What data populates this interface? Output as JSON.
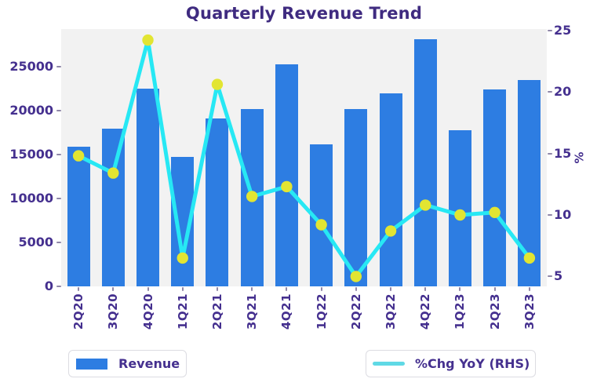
{
  "colors": {
    "bar": "#2D7DE2",
    "line": "#27E8F4",
    "marker": "#E2E532",
    "legend_line": "#5FD9E5",
    "title_text": "#3F2B80",
    "tick_text": "#45308F",
    "plot_bg": "#F2F2F2",
    "tick_dash": "#8F87A8",
    "legend_border": "#DCDCE2"
  },
  "chart_data": {
    "type": "bar+line",
    "title": "Quarterly Revenue Trend",
    "categories": [
      "2Q20",
      "3Q20",
      "4Q20",
      "1Q21",
      "2Q21",
      "3Q21",
      "4Q21",
      "1Q22",
      "2Q22",
      "3Q22",
      "4Q22",
      "1Q23",
      "2Q23",
      "3Q23"
    ],
    "series": [
      {
        "name": "Revenue",
        "type": "bar",
        "axis": "left",
        "values": [
          15900,
          18000,
          22500,
          14700,
          19100,
          20200,
          25300,
          16200,
          20200,
          22000,
          28100,
          17800,
          22400,
          23500
        ]
      },
      {
        "name": "%Chg YoY (RHS)",
        "type": "line",
        "axis": "right",
        "values": [
          14.8,
          13.4,
          24.2,
          6.5,
          20.6,
          11.5,
          12.3,
          9.2,
          5.0,
          8.7,
          10.8,
          10.0,
          10.2,
          6.5
        ]
      }
    ],
    "left_axis": {
      "ticks": [
        0,
        5000,
        10000,
        15000,
        20000,
        25000
      ],
      "range": [
        0,
        29300
      ],
      "label": ""
    },
    "right_axis": {
      "ticks": [
        5,
        10,
        15,
        20,
        25
      ],
      "range": [
        4.2,
        25.1
      ],
      "label": "%"
    },
    "grid": false,
    "legend_position": "bottom"
  }
}
